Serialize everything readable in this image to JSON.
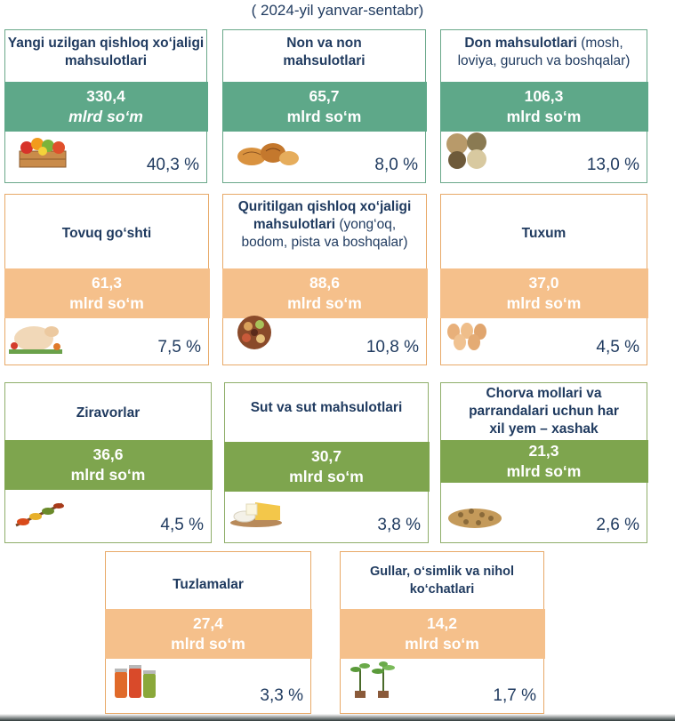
{
  "subtitle": "( 2024-yil yanvar-sentabr)",
  "cards": [
    {
      "title": "Yangi uzilgan qishloq xo‘jaligi mahsulotlari",
      "value": "330,4",
      "unit": "mlrd so‘m",
      "percent": "40,3 %",
      "icon": "fruit-crate-icon"
    },
    {
      "title": "Non va non mahsulotlari",
      "value": "65,7",
      "unit": "mlrd so‘m",
      "percent": "8,0 %",
      "icon": "bread-icon"
    },
    {
      "title_bold": "Don mahsulotlari",
      "title_light": "(mosh, loviya, guruch va boshqalar)",
      "value": "106,3",
      "unit": "mlrd so‘m",
      "percent": "13,0 %",
      "icon": "grain-sacks-icon"
    },
    {
      "title": "Tovuq go‘shti",
      "value": "61,3",
      "unit": "mlrd so‘m",
      "percent": "7,5 %",
      "icon": "chicken-icon"
    },
    {
      "title_bold": "Quritilgan qishloq xo‘jaligi mahsulotlari",
      "title_light": "(yong‘oq, bodom, pista va boshqalar)",
      "value": "88,6",
      "unit": "mlrd so‘m",
      "percent": "10,8 %",
      "icon": "dried-fruits-icon"
    },
    {
      "title": "Tuxum",
      "value": "37,0",
      "unit": "mlrd so‘m",
      "percent": "4,5 %",
      "icon": "eggs-icon"
    },
    {
      "title": "Ziravorlar",
      "value": "36,6",
      "unit": "mlrd so‘m",
      "percent": "4,5 %",
      "icon": "spices-icon"
    },
    {
      "title": "Sut va sut mahsulotlari",
      "value": "30,7",
      "unit": "mlrd so‘m",
      "percent": "3,8 %",
      "icon": "cheese-icon"
    },
    {
      "title": "Chorva mollari va parrandalari uchun har xil yem – xashak",
      "value": "21,3",
      "unit": "mlrd so‘m",
      "percent": "2,6 %",
      "icon": "feed-pellets-icon"
    },
    {
      "title": "Tuzlamalar",
      "value": "27,4",
      "unit": "mlrd so‘m",
      "percent": "3,3 %",
      "icon": "pickle-jars-icon"
    },
    {
      "title": "Gullar, o‘simlik va nihol ko‘chatlari",
      "value": "14,2",
      "unit": "mlrd so‘m",
      "percent": "1,7 %",
      "icon": "seedlings-icon"
    }
  ]
}
